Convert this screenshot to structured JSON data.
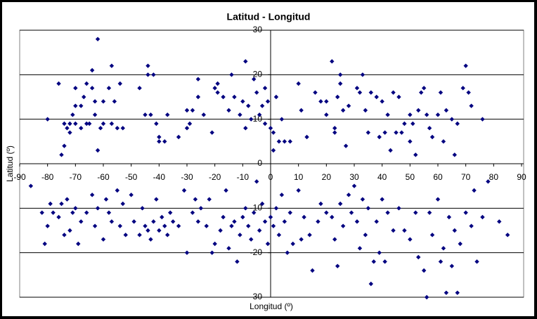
{
  "chart_data": {
    "type": "scatter",
    "title": "Latitud - Longitud",
    "x_label": "Longitud (º)",
    "y_label": "Latitud (º)",
    "color": "#000080",
    "grid": true,
    "xlim": [
      -90,
      90
    ],
    "xticks": [
      -90,
      -80,
      -70,
      -60,
      -50,
      -40,
      -30,
      -20,
      -10,
      0,
      10,
      20,
      30,
      40,
      50,
      60,
      70,
      80,
      90
    ],
    "ylim": [
      -30,
      30
    ],
    "yticks": [
      -30,
      -20,
      -10,
      0,
      10,
      20,
      30
    ],
    "x": [
      -80,
      -76,
      -75,
      -74,
      -74,
      -73,
      -72,
      -72,
      -71,
      -70,
      -70,
      -70,
      -68,
      -68,
      -67,
      -66,
      -66,
      -65,
      -64,
      -64,
      -63,
      -63,
      -62,
      -62,
      -61,
      -60,
      -60,
      -58,
      -57,
      -57,
      -56,
      -55,
      -54,
      -53,
      -47,
      -45,
      -44,
      -44,
      -43,
      -42,
      -41,
      -40,
      -40,
      -38,
      -37,
      -33,
      -30,
      -30,
      -29,
      -28,
      -26,
      -26,
      -24,
      -21,
      -20,
      -19,
      -19,
      -17,
      -14,
      -15,
      -13,
      -11,
      -10,
      -9,
      -8,
      -9,
      -7,
      -6,
      -5,
      -4,
      -3,
      -2,
      -2,
      -1,
      0,
      1,
      1,
      2,
      3,
      4,
      5,
      7,
      10,
      11,
      13,
      16,
      18,
      20,
      20,
      22,
      23,
      23,
      24,
      25,
      25,
      26,
      27,
      28,
      31,
      32,
      33,
      34,
      35,
      36,
      38,
      39,
      40,
      41,
      42,
      43,
      44,
      45,
      46,
      47,
      48,
      50,
      50,
      51,
      52,
      53,
      54,
      55,
      56,
      57,
      58,
      60,
      61,
      62,
      63,
      65,
      66,
      67,
      69,
      71,
      72,
      70,
      76,
      -86,
      -82,
      -81,
      -80,
      -79,
      -78,
      -76,
      -75,
      -74,
      -73,
      -72,
      -71,
      -70,
      -69,
      -68,
      -66,
      -64,
      -63,
      -62,
      -60,
      -59,
      -58,
      -57,
      -55,
      -54,
      -53,
      -52,
      -50,
      -49,
      -47,
      -46,
      -45,
      -44,
      -43,
      -42,
      -41,
      -40,
      -39,
      -38,
      -37,
      -36,
      -35,
      -33,
      -31,
      -30,
      -28,
      -27,
      -26,
      -25,
      -23,
      -22,
      -21,
      -20,
      -18,
      -17,
      -16,
      -15,
      -14,
      -13,
      -12,
      -11,
      -10,
      -9,
      -8,
      -7,
      -6,
      -5,
      -4,
      -3,
      -2,
      -1,
      0,
      1,
      2,
      3,
      4,
      5,
      6,
      7,
      8,
      10,
      11,
      12,
      14,
      15,
      17,
      18,
      20,
      22,
      23,
      24,
      25,
      26,
      28,
      29,
      30,
      31,
      32,
      33,
      34,
      35,
      36,
      37,
      38,
      39,
      40,
      41,
      42,
      44,
      46,
      48,
      50,
      52,
      53,
      55,
      56,
      57,
      58,
      60,
      61,
      62,
      63,
      64,
      65,
      66,
      67,
      68,
      70,
      72,
      73,
      74,
      76,
      78,
      82,
      85
    ],
    "values": [
      10,
      18,
      2,
      4,
      9,
      8,
      7,
      9,
      11,
      13,
      9,
      17,
      8,
      13,
      15,
      9,
      18,
      9,
      17,
      21,
      14,
      11,
      28,
      3,
      8,
      14,
      9,
      17,
      22,
      9,
      14,
      8,
      18,
      8,
      17,
      11,
      22,
      20,
      11,
      20,
      9,
      5,
      6,
      5,
      11,
      6,
      12,
      8,
      9,
      12,
      15,
      19,
      11,
      7,
      17,
      18,
      16,
      15,
      20,
      12,
      15,
      11,
      14,
      8,
      13,
      23,
      10,
      19,
      16,
      11,
      13,
      9,
      17,
      14,
      8,
      7,
      3,
      15,
      5,
      10,
      5,
      5,
      18,
      12,
      6,
      16,
      14,
      14,
      11,
      23,
      7,
      8,
      15,
      18,
      20,
      12,
      4,
      13,
      17,
      16,
      20,
      12,
      7,
      16,
      15,
      6,
      14,
      7,
      11,
      3,
      16,
      7,
      15,
      7,
      9,
      5,
      11,
      9,
      2,
      12,
      16,
      17,
      11,
      8,
      6,
      11,
      16,
      5,
      12,
      10,
      2,
      9,
      17,
      16,
      13,
      22,
      10,
      -5,
      -11,
      -18,
      -14,
      -9,
      -11,
      -12,
      -9,
      -16,
      -8,
      -15,
      -11,
      -10,
      -18,
      -13,
      -11,
      -7,
      -14,
      -10,
      -17,
      -8,
      -11,
      -13,
      -6,
      -14,
      -9,
      -16,
      -7,
      -13,
      -16,
      -10,
      -14,
      -15,
      -17,
      -13,
      -8,
      -15,
      -12,
      -14,
      -16,
      -11,
      -13,
      -14,
      -6,
      -20,
      -11,
      -8,
      -13,
      -10,
      -14,
      -8,
      -20,
      -18,
      -15,
      -12,
      -6,
      -19,
      -14,
      -13,
      -22,
      -16,
      -12,
      -10,
      -14,
      -17,
      -11,
      -4,
      -15,
      -9,
      -13,
      -18,
      -12,
      -14,
      -10,
      -16,
      -7,
      -13,
      -20,
      -11,
      -18,
      -6,
      -17,
      -12,
      -16,
      -24,
      -13,
      -9,
      -11,
      -12,
      -17,
      -23,
      -9,
      -14,
      -7,
      -11,
      -5,
      -13,
      -19,
      -8,
      -16,
      -10,
      -27,
      -22,
      -13,
      -20,
      -8,
      -22,
      -11,
      -15,
      -10,
      -15,
      -17,
      -11,
      -21,
      -24,
      -30,
      -11,
      -16,
      -8,
      -22,
      -19,
      -29,
      -12,
      -23,
      -15,
      -29,
      -18,
      -11,
      -14,
      -6,
      -22,
      -12,
      -4,
      -13,
      -16
    ]
  }
}
